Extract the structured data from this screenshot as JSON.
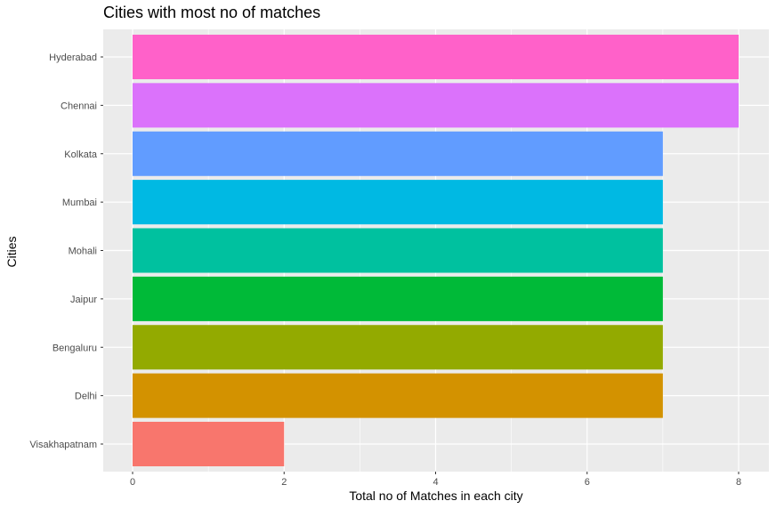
{
  "chart_data": {
    "type": "bar",
    "orientation": "horizontal",
    "title": "Cities with most no of matches",
    "xlabel": "Total no of Matches in each city",
    "ylabel": "Cities",
    "categories": [
      "Hyderabad",
      "Chennai",
      "Kolkata",
      "Mumbai",
      "Mohali",
      "Jaipur",
      "Bengaluru",
      "Delhi",
      "Visakhapatnam"
    ],
    "values": [
      8,
      8,
      7,
      7,
      7,
      7,
      7,
      7,
      2
    ],
    "colors": [
      "#FF61C9",
      "#DB72FB",
      "#619CFF",
      "#00B9E3",
      "#00C19F",
      "#00BA38",
      "#93AA00",
      "#D39200",
      "#F8766D"
    ],
    "xlim": [
      0,
      8
    ],
    "xticks": [
      0,
      2,
      4,
      6,
      8
    ],
    "grid": true,
    "legend": "none",
    "panel_background": "#EBEBEB",
    "grid_color": "#FFFFFF"
  }
}
